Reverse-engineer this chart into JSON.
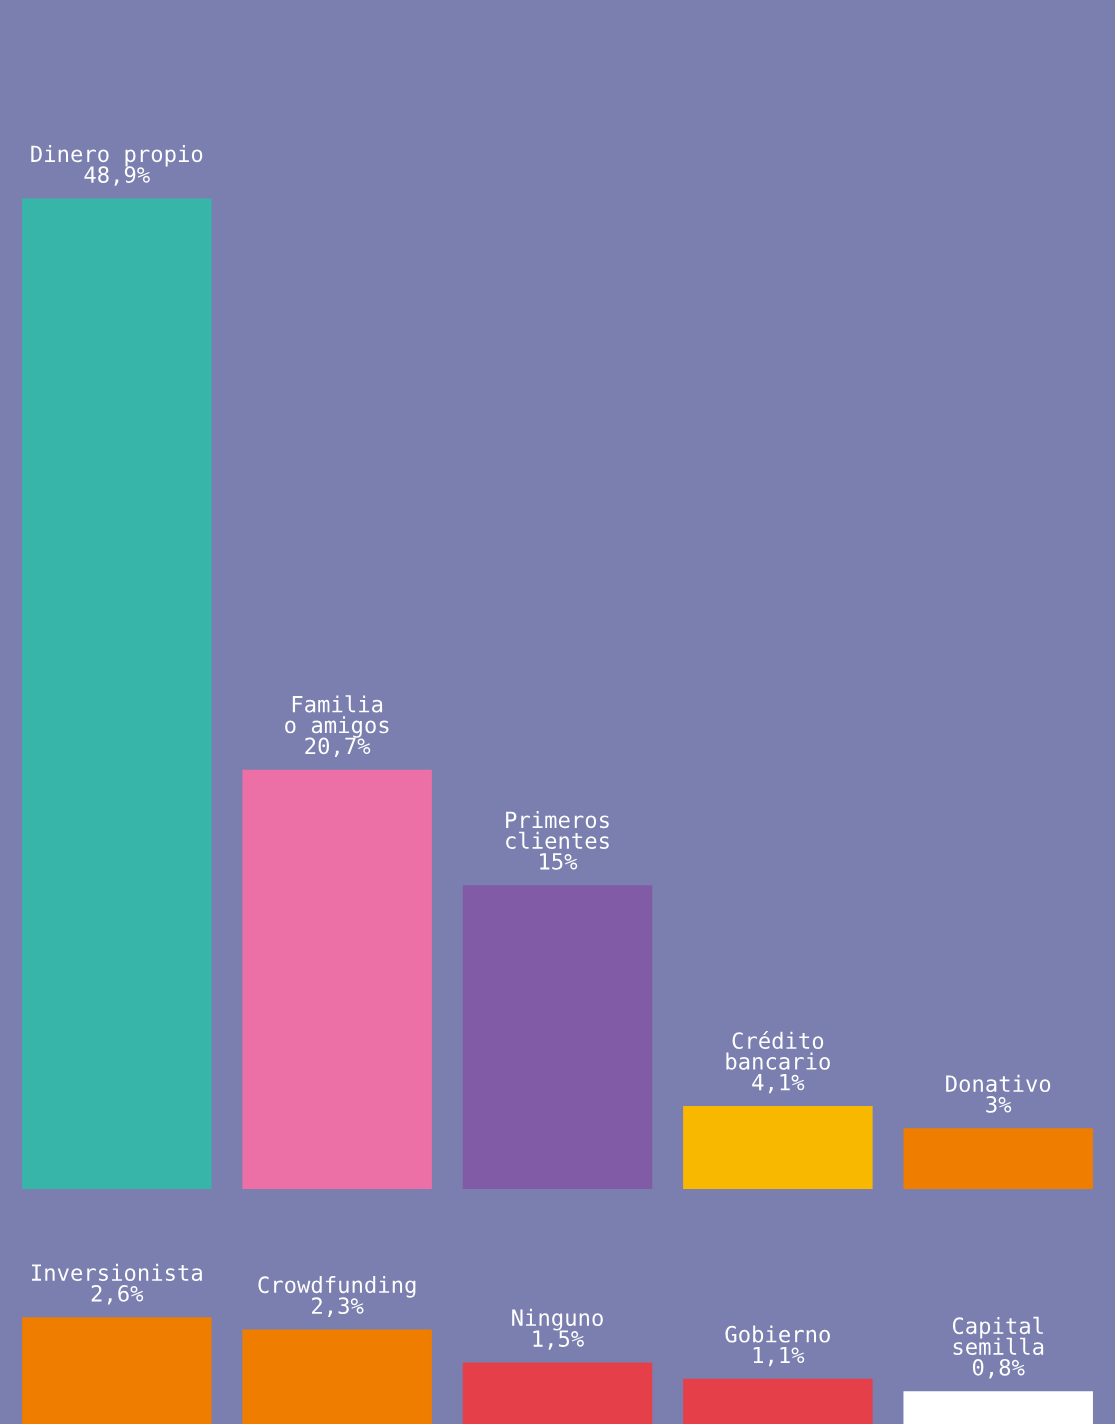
{
  "chart_data": [
    {
      "type": "bar",
      "categories": [
        "Dinero propio",
        "Familia\no amigos",
        "Primeros\nclientes",
        "Crédito\nbancario",
        "Donativo"
      ],
      "values": [
        48.9,
        20.7,
        15,
        4.1,
        3
      ],
      "value_labels": [
        "48,9%",
        "20,7%",
        "15%",
        "4,1%",
        "3%"
      ],
      "colors": [
        "#38b5a9",
        "#ec6fa6",
        "#825ba6",
        "#f9b800",
        "#ef7d00"
      ],
      "tick_labels": false
    },
    {
      "type": "bar",
      "categories": [
        "Inversionista",
        "Crowdfunding",
        "Ninguno",
        "Gobierno",
        "Capital\nsemilla"
      ],
      "values": [
        2.6,
        2.3,
        1.5,
        1.1,
        0.8
      ],
      "value_labels": [
        "2,6%",
        "2,3%",
        "1,5%",
        "1,1%",
        "0,8%"
      ],
      "colors": [
        "#ef7d00",
        "#ef7d00",
        "#e5404a",
        "#e5404a",
        "#ffffff"
      ],
      "tick_labels": false
    }
  ]
}
